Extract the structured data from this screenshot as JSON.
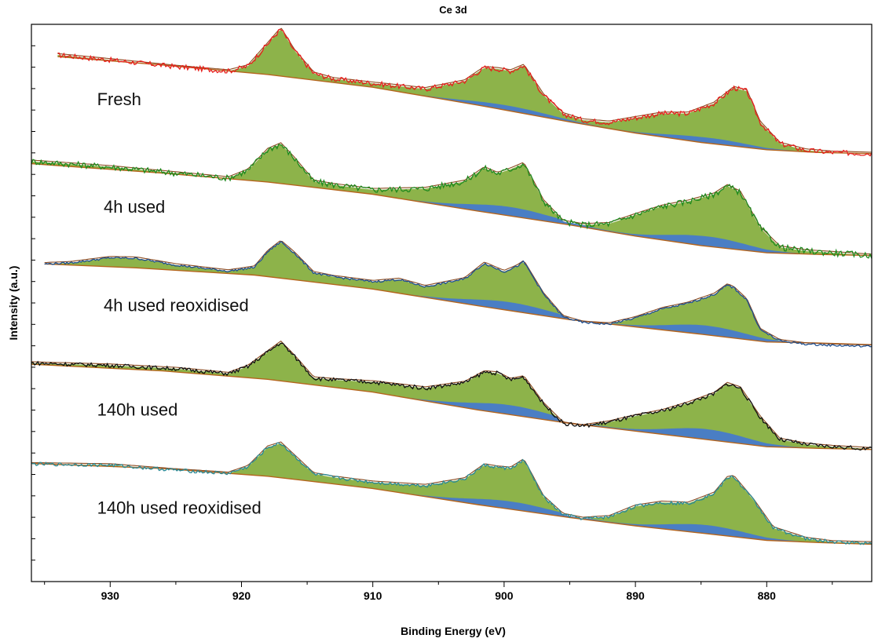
{
  "chart_data": {
    "type": "line",
    "title": "Ce 3d",
    "xlabel": "Binding Energy (eV)",
    "ylabel": "Intensity (a.u.)",
    "x_reversed": true,
    "xlim": [
      936,
      872
    ],
    "xticks": [
      930,
      920,
      910,
      900,
      890,
      880
    ],
    "y_units": "stacked intensity (a.u., arbitrary offset per spectrum)",
    "grid": false,
    "component_colors": {
      "Ce4+": "#8db34a",
      "Ce3+": "#4a7ec4",
      "background": "#b5651d",
      "envelope": "#8b4a1f"
    },
    "series": [
      {
        "name": "Fresh",
        "color": "#e8201e",
        "background": {
          "x": [
            934,
            926,
            918,
            910,
            902,
            895,
            890,
            885,
            880,
            876,
            872
          ],
          "y": [
            94.2,
            92.7,
            91.0,
            88.7,
            85.5,
            82.5,
            80.5,
            78.8,
            77.5,
            77.0,
            76.8
          ]
        },
        "data": {
          "x": [
            934,
            930,
            925,
            921,
            919.5,
            918,
            917,
            916,
            914.5,
            913,
            910,
            906,
            903,
            901.5,
            900.5,
            899.5,
            898.5,
            897,
            895.5,
            894,
            892,
            890,
            888,
            886,
            884,
            882.5,
            881.5,
            880.5,
            879,
            877,
            875,
            872
          ],
          "y": [
            94.5,
            93.6,
            92.4,
            91.6,
            92.5,
            96.5,
            99.2,
            95.4,
            91.2,
            90.2,
            89.4,
            88.4,
            89.8,
            92.2,
            92.0,
            91.6,
            92.6,
            87.3,
            83.9,
            82.8,
            82.4,
            83.2,
            84.0,
            84.0,
            85.8,
            88.6,
            88.0,
            82.4,
            78.6,
            77.4,
            77.0,
            76.8
          ]
        }
      },
      {
        "name": "4h used",
        "color": "#1f8a1f",
        "background": {
          "x": [
            936,
            926,
            918,
            910,
            902,
            895,
            890,
            885,
            880,
            876,
            872
          ],
          "y": [
            75.0,
            73.3,
            71.7,
            69.5,
            66.5,
            64.0,
            62.0,
            60.3,
            59.0,
            58.7,
            58.5
          ]
        },
        "data": {
          "x": [
            936,
            930,
            925,
            921,
            919.5,
            918,
            917,
            916,
            914.5,
            913,
            910,
            906,
            903,
            901.5,
            900.5,
            899.5,
            898.5,
            897,
            895.5,
            894,
            892,
            890,
            888,
            886,
            884,
            883,
            882,
            880.5,
            879,
            877,
            875,
            872
          ],
          "y": [
            75.4,
            74.4,
            73.3,
            72.4,
            73.8,
            77.5,
            78.5,
            76.0,
            71.8,
            71.2,
            70.3,
            70.5,
            71.8,
            74.2,
            73.2,
            74.0,
            75.0,
            68.3,
            64.6,
            64.0,
            64.2,
            65.8,
            67.3,
            68.2,
            69.5,
            71.0,
            69.8,
            63.5,
            60.0,
            59.3,
            59.0,
            58.5
          ]
        }
      },
      {
        "name": "4h used  reoxidised",
        "color": "#1f4f8f",
        "background": {
          "x": [
            935,
            928,
            919,
            910,
            902,
            895,
            890,
            885,
            880,
            876,
            872
          ],
          "y": [
            57.0,
            56.3,
            55.0,
            52.5,
            49.5,
            47.0,
            45.7,
            44.4,
            43.0,
            42.8,
            42.5
          ]
        },
        "data": {
          "x": [
            935,
            933,
            930,
            928,
            925,
            921,
            919,
            918,
            917,
            916,
            914.5,
            913,
            910,
            908,
            906,
            903,
            901.5,
            900,
            899,
            898.5,
            897,
            895.5,
            894,
            892,
            890,
            888,
            886,
            884,
            883,
            882.5,
            881.5,
            880.5,
            879,
            877,
            875,
            872
          ],
          "y": [
            57.0,
            57.2,
            58.1,
            58.0,
            56.8,
            55.7,
            56.4,
            59.2,
            61.0,
            59.0,
            55.4,
            54.7,
            53.8,
            54.2,
            52.9,
            54.3,
            57.1,
            55.6,
            56.6,
            57.4,
            51.6,
            47.5,
            46.5,
            46.2,
            47.3,
            48.9,
            49.9,
            51.5,
            53.2,
            52.7,
            50.5,
            45.2,
            43.2,
            42.6,
            42.4,
            42.2
          ]
        }
      },
      {
        "name": "140h used",
        "color": "#111111",
        "background": {
          "x": [
            936,
            926,
            918,
            910,
            902,
            895,
            890,
            885,
            880,
            876,
            872
          ],
          "y": [
            39.0,
            37.8,
            36.3,
            34.0,
            30.8,
            28.4,
            27.0,
            25.6,
            24.2,
            23.9,
            23.7
          ]
        },
        "data": {
          "x": [
            936,
            930,
            925,
            921,
            919.5,
            918,
            917,
            916,
            914.5,
            913,
            910,
            906,
            903,
            901.5,
            900.5,
            899.5,
            898.5,
            897,
            895.5,
            894,
            892,
            890,
            888,
            886,
            884,
            883,
            882,
            880.5,
            879,
            877,
            875,
            872
          ],
          "y": [
            39.2,
            38.8,
            38.2,
            37.3,
            38.6,
            41.2,
            42.9,
            40.5,
            36.5,
            36.2,
            35.8,
            34.7,
            35.7,
            37.6,
            37.4,
            36.2,
            36.7,
            31.9,
            28.4,
            27.9,
            28.6,
            29.7,
            30.6,
            32.0,
            33.7,
            35.5,
            34.7,
            29.5,
            25.5,
            24.6,
            24.2,
            23.8
          ]
        }
      },
      {
        "name": "140h used  reoxidised",
        "color": "#2b8a95",
        "background": {
          "x": [
            936,
            926,
            918,
            910,
            902,
            895,
            890,
            885,
            880,
            876,
            872
          ],
          "y": [
            21.2,
            20.3,
            18.9,
            16.7,
            13.8,
            11.5,
            10.0,
            8.7,
            7.4,
            7.0,
            6.7
          ]
        },
        "data": {
          "x": [
            936,
            930,
            925,
            921,
            919.5,
            918,
            917,
            916,
            914.5,
            913,
            910,
            906,
            903,
            901.5,
            900.5,
            899.5,
            898.5,
            897,
            895.5,
            894,
            892,
            890,
            888,
            886,
            884,
            883,
            882.5,
            881,
            879.5,
            877,
            875,
            872
          ],
          "y": [
            21.1,
            20.9,
            20.0,
            19.4,
            20.6,
            24.1,
            24.8,
            22.6,
            19.3,
            18.7,
            17.8,
            17.2,
            18.4,
            20.9,
            20.5,
            20.3,
            21.8,
            15.2,
            12.0,
            11.3,
            11.6,
            13.5,
            14.2,
            14.0,
            15.8,
            18.6,
            18.8,
            14.6,
            9.6,
            7.7,
            7.1,
            6.9
          ]
        }
      }
    ],
    "annotations": [
      {
        "text": "Fresh",
        "x": 931,
        "y": 85.5
      },
      {
        "text": "4h used",
        "x": 930.5,
        "y": 66.2
      },
      {
        "text": "4h used  reoxidised",
        "x": 930.5,
        "y": 48.5
      },
      {
        "text": "140h used",
        "x": 931,
        "y": 29.8
      },
      {
        "text": "140h used  reoxidised",
        "x": 931,
        "y": 12.2
      }
    ]
  }
}
